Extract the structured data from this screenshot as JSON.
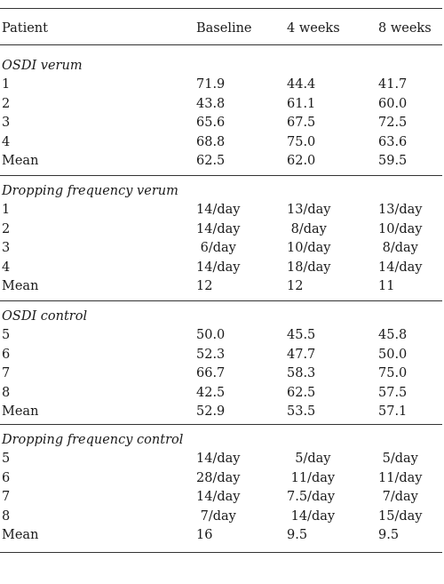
{
  "header": {
    "patient": "Patient",
    "baseline": "Baseline",
    "w4": "4 weeks",
    "w8": "8 weeks"
  },
  "sections": [
    {
      "title": "OSDI verum",
      "rows": [
        {
          "patient": "1",
          "baseline": "71.9",
          "w4": "44.4",
          "w8": "41.7"
        },
        {
          "patient": "2",
          "baseline": "43.8",
          "w4": "61.1",
          "w8": "60.0"
        },
        {
          "patient": "3",
          "baseline": "65.6",
          "w4": "67.5",
          "w8": "72.5"
        },
        {
          "patient": "4",
          "baseline": "68.8",
          "w4": "75.0",
          "w8": "63.6"
        },
        {
          "patient": "Mean",
          "baseline": "62.5",
          "w4": "62.0",
          "w8": "59.5"
        }
      ]
    },
    {
      "title": "Dropping frequency verum",
      "rows": [
        {
          "patient": "1",
          "baseline": "14/day",
          "w4": "13/day",
          "w8": "13/day"
        },
        {
          "patient": "2",
          "baseline": "14/day",
          "w4": "8/day",
          "w8": "10/day"
        },
        {
          "patient": "3",
          "baseline": "6/day",
          "w4": "10/day",
          "w8": "8/day"
        },
        {
          "patient": "4",
          "baseline": "14/day",
          "w4": "18/day",
          "w8": "14/day"
        },
        {
          "patient": "Mean",
          "baseline": "12",
          "w4": "12",
          "w8": "11"
        }
      ]
    },
    {
      "title": "OSDI control",
      "rows": [
        {
          "patient": "5",
          "baseline": "50.0",
          "w4": "45.5",
          "w8": "45.8"
        },
        {
          "patient": "6",
          "baseline": "52.3",
          "w4": "47.7",
          "w8": "50.0"
        },
        {
          "patient": "7",
          "baseline": "66.7",
          "w4": "58.3",
          "w8": "75.0"
        },
        {
          "patient": "8",
          "baseline": "42.5",
          "w4": "62.5",
          "w8": "57.5"
        },
        {
          "patient": "Mean",
          "baseline": "52.9",
          "w4": "53.5",
          "w8": "57.1"
        }
      ]
    },
    {
      "title": "Dropping frequency control",
      "rows": [
        {
          "patient": "5",
          "baseline": "14/day",
          "w4": "5/day",
          "w8": "5/day"
        },
        {
          "patient": "6",
          "baseline": "28/day",
          "w4": "11/day",
          "w8": "11/day"
        },
        {
          "patient": "7",
          "baseline": "14/day",
          "w4": "7.5/day",
          "w8": "7/day"
        },
        {
          "patient": "8",
          "baseline": "7/day",
          "w4": "14/day",
          "w8": "15/day"
        },
        {
          "patient": "Mean",
          "baseline": "16",
          "w4": "9.5",
          "w8": "9.5"
        }
      ]
    }
  ]
}
